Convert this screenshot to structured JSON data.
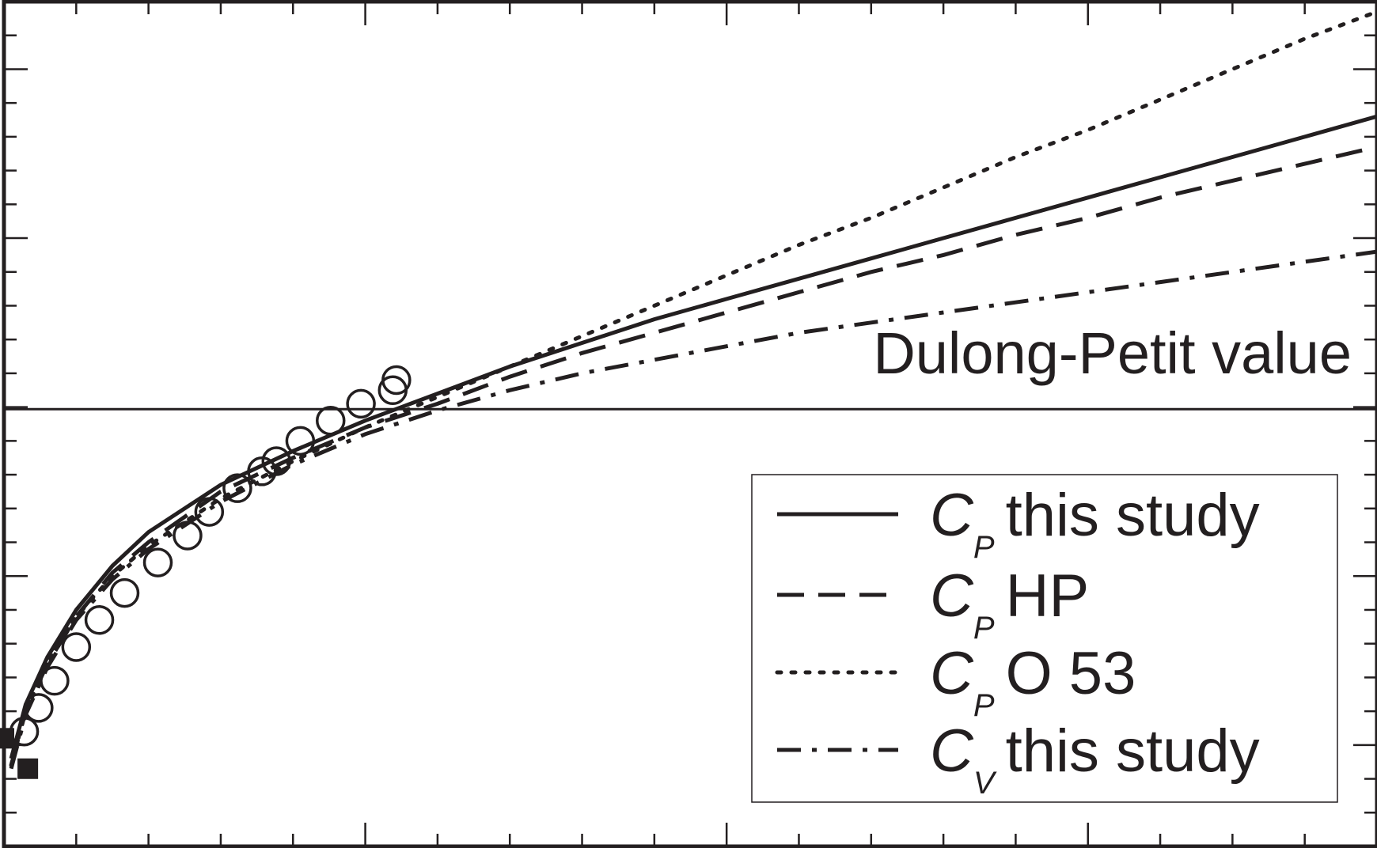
{
  "chart_data": {
    "type": "line",
    "title": "",
    "xlabel": "",
    "ylabel": "",
    "xlim": [
      0,
      1900
    ],
    "ylim": [
      12,
      37
    ],
    "grid": false,
    "legend_position": "bottom-right",
    "reference_line": {
      "y": 24.94,
      "label": "Dulong-Petit value"
    },
    "series": [
      {
        "name": "this study",
        "symbol": "C",
        "subscript": "P",
        "style": "solid",
        "x": [
          10,
          30,
          60,
          100,
          150,
          200,
          300,
          400,
          500,
          600,
          700,
          800,
          900,
          1000,
          1100,
          1200,
          1300,
          1400,
          1500,
          1600,
          1700,
          1800,
          1900
        ],
        "y": [
          14.6,
          16.2,
          17.6,
          19.0,
          20.3,
          21.3,
          22.7,
          23.7,
          24.6,
          25.4,
          26.2,
          26.9,
          27.6,
          28.2,
          28.8,
          29.4,
          30.0,
          30.6,
          31.2,
          31.8,
          32.4,
          33.0,
          33.6
        ]
      },
      {
        "name": "HP",
        "symbol": "C",
        "subscript": "P",
        "style": "dashed",
        "x": [
          10,
          30,
          60,
          100,
          150,
          200,
          300,
          400,
          500,
          600,
          700,
          800,
          900,
          1000,
          1100,
          1200,
          1300,
          1400,
          1500,
          1600,
          1700,
          1800,
          1900
        ],
        "y": [
          14.4,
          16.0,
          17.4,
          18.8,
          20.1,
          21.0,
          22.5,
          23.5,
          24.4,
          25.1,
          25.9,
          26.6,
          27.2,
          27.8,
          28.4,
          29.0,
          29.5,
          30.1,
          30.6,
          31.2,
          31.7,
          32.2,
          32.7
        ]
      },
      {
        "name": "O 53",
        "symbol": "C",
        "subscript": "P",
        "style": "dotted",
        "x": [
          10,
          30,
          60,
          100,
          150,
          200,
          300,
          400,
          500,
          600,
          700,
          800,
          900,
          1000,
          1100,
          1200,
          1300,
          1400,
          1500,
          1600,
          1700,
          1800,
          1900
        ],
        "y": [
          14.4,
          16.0,
          17.4,
          18.8,
          20.0,
          20.9,
          22.3,
          23.4,
          24.4,
          25.3,
          26.2,
          27.1,
          28.0,
          28.9,
          29.8,
          30.6,
          31.5,
          32.4,
          33.2,
          34.1,
          35.0,
          35.9,
          36.7
        ]
      },
      {
        "name": "this study",
        "symbol": "C",
        "subscript": "V",
        "style": "dashdot",
        "x": [
          10,
          30,
          60,
          100,
          150,
          200,
          300,
          400,
          500,
          600,
          700,
          800,
          900,
          1000,
          1100,
          1200,
          1300,
          1400,
          1500,
          1600,
          1700,
          1800,
          1900
        ],
        "y": [
          14.3,
          15.9,
          17.3,
          18.7,
          19.9,
          20.8,
          22.2,
          23.3,
          24.2,
          24.9,
          25.5,
          26.0,
          26.4,
          26.8,
          27.2,
          27.5,
          27.8,
          28.1,
          28.4,
          28.7,
          29.0,
          29.3,
          29.6
        ]
      }
    ],
    "markers": {
      "open_circles": {
        "x": [
          28,
          48,
          70,
          100,
          132,
          167,
          213,
          254,
          284,
          323,
          357,
          377,
          410,
          452,
          494,
          538,
          543
        ],
        "y": [
          15.4,
          16.1,
          16.9,
          17.9,
          18.7,
          19.5,
          20.4,
          21.2,
          21.9,
          22.6,
          23.1,
          23.4,
          24.0,
          24.6,
          25.1,
          25.5,
          25.8
        ]
      },
      "filled_squares": {
        "x": [
          0,
          33
        ],
        "y": [
          15.2,
          14.3
        ]
      }
    }
  }
}
